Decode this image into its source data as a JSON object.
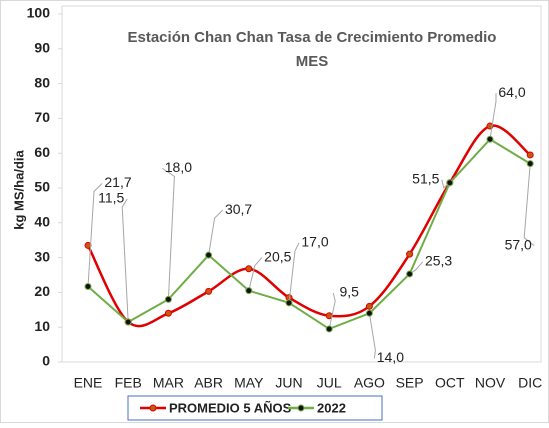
{
  "chart_data": {
    "type": "line",
    "title": "Estación Chan Chan Tasa de Crecimiento Promedio",
    "x_label": "MES",
    "y_label": "kg MS/ha/dia",
    "categories": [
      "ENE",
      "FEB",
      "MAR",
      "ABR",
      "MAY",
      "JUN",
      "JUL",
      "AGO",
      "SEP",
      "OCT",
      "NOV",
      "DIC"
    ],
    "series": [
      {
        "name": "PROMEDIO 5 AÑOS",
        "color": "#e00000",
        "smooth": true,
        "values": [
          33.5,
          11.5,
          14,
          20.3,
          26.8,
          18.5,
          13.3,
          16,
          31,
          51.5,
          67.8,
          59.5
        ]
      },
      {
        "name": "2022",
        "color": "#70ad47",
        "smooth": false,
        "values": [
          21.7,
          11.5,
          18,
          30.7,
          20.5,
          17,
          9.5,
          14,
          25.3,
          51.5,
          64,
          57
        ],
        "value_labels": [
          "21,7",
          "11,5",
          "18,0",
          "30,7",
          "20,5",
          "17,0",
          "9,5",
          "14,0",
          "25,3",
          "51,5",
          "64,0",
          "57,0"
        ]
      }
    ],
    "ylim": [
      0,
      100
    ],
    "yticks": [
      0,
      10,
      20,
      30,
      40,
      50,
      60,
      70,
      80,
      90,
      100
    ],
    "grid": false,
    "legend": "bottom"
  }
}
